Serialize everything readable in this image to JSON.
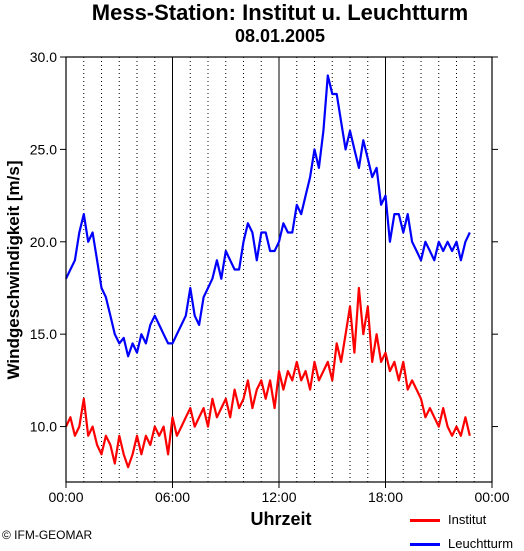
{
  "header": {
    "title": "Mess-Station: Institut u. Leuchtturm",
    "subtitle": "08.01.2005"
  },
  "credit": "© IFM-GEOMAR",
  "colors": {
    "institut": "#ff0000",
    "leuchtturm": "#0000ff",
    "axis": "#000000"
  },
  "chart_data": {
    "type": "line",
    "title": "Mess-Station: Institut u. Leuchtturm",
    "subtitle": "08.01.2005",
    "xlabel": "Uhrzeit",
    "ylabel": "Windgeschwindigkeit [m/s]",
    "xlim": [
      0,
      24
    ],
    "ylim": [
      7.0,
      30.0
    ],
    "xticks": [
      0,
      6,
      12,
      18,
      24
    ],
    "xtick_labels": [
      "00:00",
      "06:00",
      "12:00",
      "18:00",
      "00:00"
    ],
    "yticks": [
      10,
      15,
      20,
      25,
      30
    ],
    "ytick_labels": [
      "10.0",
      "15.0",
      "20.0",
      "25.0",
      "30.0"
    ],
    "grid": "vertical dotted hourly, solid at 06:00/12:00/18:00",
    "legend": "bottom-right",
    "series": [
      {
        "name": "Institut",
        "color": "#ff0000",
        "x": [
          0.0,
          0.25,
          0.5,
          0.75,
          1.0,
          1.25,
          1.5,
          1.75,
          2.0,
          2.25,
          2.5,
          2.75,
          3.0,
          3.25,
          3.5,
          3.75,
          4.0,
          4.25,
          4.5,
          4.75,
          5.0,
          5.25,
          5.5,
          5.75,
          6.0,
          6.25,
          6.5,
          6.75,
          7.0,
          7.25,
          7.5,
          7.75,
          8.0,
          8.25,
          8.5,
          8.75,
          9.0,
          9.25,
          9.5,
          9.75,
          10.0,
          10.25,
          10.5,
          10.75,
          11.0,
          11.25,
          11.5,
          11.75,
          12.0,
          12.25,
          12.5,
          12.75,
          13.0,
          13.25,
          13.5,
          13.75,
          14.0,
          14.25,
          14.5,
          14.75,
          15.0,
          15.25,
          15.5,
          15.75,
          16.0,
          16.25,
          16.5,
          16.75,
          17.0,
          17.25,
          17.5,
          17.75,
          18.0,
          18.25,
          18.5,
          18.75,
          19.0,
          19.25,
          19.5,
          19.75,
          20.0,
          20.25,
          20.5,
          20.75,
          21.0,
          21.25,
          21.5,
          21.75,
          22.0,
          22.25,
          22.5,
          22.75
        ],
        "y": [
          10.0,
          10.5,
          9.5,
          10.0,
          11.5,
          9.5,
          10.0,
          9.0,
          8.5,
          9.5,
          9.0,
          8.0,
          9.5,
          8.5,
          7.8,
          8.5,
          9.5,
          8.5,
          9.5,
          9.0,
          10.0,
          9.5,
          10.0,
          8.5,
          10.5,
          9.5,
          10.0,
          10.5,
          11.0,
          10.0,
          10.5,
          11.0,
          10.0,
          11.5,
          10.5,
          11.0,
          11.5,
          10.5,
          12.0,
          11.0,
          11.5,
          12.5,
          11.0,
          12.0,
          12.5,
          11.5,
          12.5,
          11.0,
          13.0,
          12.0,
          13.0,
          12.5,
          13.5,
          12.5,
          13.0,
          12.0,
          13.5,
          12.5,
          13.0,
          13.5,
          12.5,
          14.5,
          13.5,
          15.0,
          16.5,
          14.0,
          17.5,
          15.0,
          16.5,
          13.5,
          15.0,
          13.5,
          14.0,
          13.0,
          13.5,
          12.5,
          13.5,
          12.0,
          12.5,
          12.0,
          11.5,
          10.5,
          11.0,
          10.5,
          10.0,
          11.0,
          10.0,
          9.5,
          10.0,
          9.5,
          10.5,
          9.5
        ]
      },
      {
        "name": "Leuchtturm",
        "color": "#0000ff",
        "x": [
          0.0,
          0.25,
          0.5,
          0.75,
          1.0,
          1.25,
          1.5,
          1.75,
          2.0,
          2.25,
          2.5,
          2.75,
          3.0,
          3.25,
          3.5,
          3.75,
          4.0,
          4.25,
          4.5,
          4.75,
          5.0,
          5.25,
          5.5,
          5.75,
          6.0,
          6.25,
          6.5,
          6.75,
          7.0,
          7.25,
          7.5,
          7.75,
          8.0,
          8.25,
          8.5,
          8.75,
          9.0,
          9.25,
          9.5,
          9.75,
          10.0,
          10.25,
          10.5,
          10.75,
          11.0,
          11.25,
          11.5,
          11.75,
          12.0,
          12.25,
          12.5,
          12.75,
          13.0,
          13.25,
          13.5,
          13.75,
          14.0,
          14.25,
          14.5,
          14.75,
          15.0,
          15.25,
          15.5,
          15.75,
          16.0,
          16.25,
          16.5,
          16.75,
          17.0,
          17.25,
          17.5,
          17.75,
          18.0,
          18.25,
          18.5,
          18.75,
          19.0,
          19.25,
          19.5,
          19.75,
          20.0,
          20.25,
          20.5,
          20.75,
          21.0,
          21.25,
          21.5,
          21.75,
          22.0,
          22.25,
          22.5,
          22.75
        ],
        "y": [
          18.0,
          18.5,
          19.0,
          20.5,
          21.5,
          20.0,
          20.5,
          19.0,
          17.5,
          17.0,
          16.0,
          15.0,
          14.5,
          14.8,
          13.8,
          14.5,
          14.0,
          15.0,
          14.5,
          15.5,
          16.0,
          15.5,
          15.0,
          14.5,
          14.5,
          15.0,
          15.5,
          16.0,
          17.5,
          16.0,
          15.5,
          17.0,
          17.5,
          18.0,
          19.0,
          18.0,
          19.5,
          19.0,
          18.5,
          18.5,
          20.0,
          21.0,
          20.5,
          19.0,
          20.5,
          20.5,
          19.5,
          19.5,
          20.0,
          21.0,
          20.5,
          20.5,
          22.0,
          21.5,
          22.5,
          23.5,
          25.0,
          24.0,
          26.0,
          29.0,
          28.0,
          28.0,
          26.5,
          25.0,
          26.0,
          25.0,
          24.0,
          25.5,
          24.5,
          23.5,
          24.0,
          22.0,
          22.5,
          20.0,
          21.5,
          21.5,
          20.5,
          21.5,
          20.0,
          19.5,
          19.0,
          20.0,
          19.5,
          19.0,
          20.0,
          19.5,
          20.0,
          19.5,
          20.0,
          19.0,
          20.0,
          20.5
        ]
      }
    ]
  }
}
